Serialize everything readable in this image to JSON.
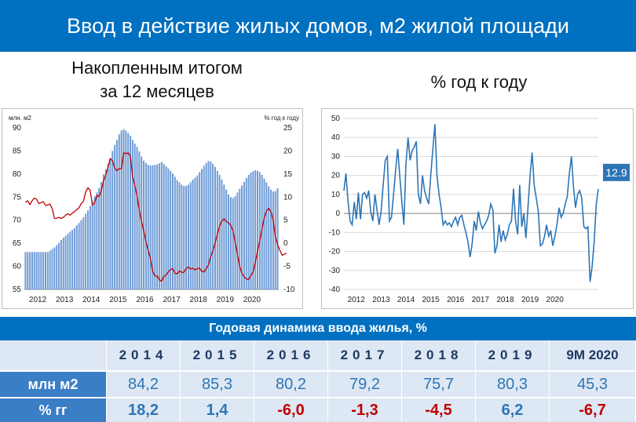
{
  "title": "Ввод в действие жилых домов, м2 жилой площади",
  "left_subtitle_line1": "Накопленным итогом",
  "left_subtitle_line2": "за 12 месяцев",
  "right_subtitle": "% год к году",
  "colors": {
    "header": "#0070c0",
    "bar": "#6f9bd6",
    "line": "#c00000",
    "line_right": "#2e75b6",
    "pos": "#2e75b6",
    "neg": "#c00000"
  },
  "chart_data": [
    {
      "type": "bar",
      "ylabel": "млн. м2",
      "y2label": "% год к году",
      "ylim": [
        55,
        90
      ],
      "y2lim": [
        -10,
        25
      ],
      "yticks": [
        55,
        60,
        65,
        70,
        75,
        80,
        85,
        90
      ],
      "y2ticks": [
        -10,
        -5,
        0,
        5,
        10,
        15,
        20,
        25
      ],
      "x_tick_labels": [
        "2012",
        "2013",
        "2014",
        "2015",
        "2016",
        "2017",
        "2018",
        "2019",
        "2020"
      ],
      "series": [
        {
          "values": [
            63.1,
            63.1,
            63.1,
            63.1,
            63.1,
            63.1,
            63.1,
            63.1,
            63.1,
            63.1,
            63.1,
            63.4,
            63.8,
            64.1,
            64.6,
            65.1,
            65.7,
            66.2,
            66.6,
            67.1,
            67.5,
            67.9,
            68.3,
            68.9,
            69.4,
            70.0,
            70.6,
            71.4,
            72.1,
            73.1,
            74.2,
            75.2,
            76.0,
            77.0,
            78.3,
            79.9,
            81.0,
            82.2,
            83.5,
            85.0,
            86.3,
            87.4,
            88.6,
            89.4,
            89.7,
            89.4,
            88.9,
            88.3,
            87.4,
            86.6,
            85.9,
            84.9,
            83.8,
            82.9,
            82.4,
            82.0,
            81.8,
            81.9,
            82.0,
            82.1,
            82.3,
            82.6,
            82.2,
            81.7,
            81.2,
            80.7,
            80.1,
            79.4,
            78.7,
            78.2,
            77.7,
            77.4,
            77.4,
            77.7,
            78.2,
            78.8,
            79.2,
            79.7,
            80.4,
            81.1,
            81.8,
            82.4,
            82.8,
            82.7,
            82.2,
            81.5,
            80.7,
            79.8,
            78.8,
            77.7,
            76.6,
            75.6,
            75.0,
            74.8,
            75.2,
            76.0,
            76.8,
            77.5,
            78.3,
            79.1,
            79.8,
            80.3,
            80.6,
            80.8,
            80.7,
            80.4,
            79.8,
            79.0,
            78.2,
            77.3,
            76.6,
            76.2,
            76.3,
            76.9
          ]
        },
        {
          "values": [
            8.9,
            9.2,
            8.4,
            9.2,
            9.8,
            9.5,
            8.6,
            8.8,
            9.0,
            8.2,
            8.3,
            8.5,
            7.5,
            5.4,
            5.4,
            5.6,
            5.4,
            5.6,
            6.1,
            6.4,
            6.1,
            6.5,
            6.9,
            7.3,
            7.7,
            8.6,
            9.1,
            11.2,
            12.0,
            11.5,
            8.3,
            8.7,
            10.4,
            10.1,
            11.5,
            13.5,
            14.8,
            16.5,
            18.3,
            17.9,
            16.3,
            15.7,
            16.2,
            16.1,
            19.6,
            19.4,
            19.6,
            18.9,
            14.5,
            12.5,
            10.3,
            7.2,
            4.8,
            2.7,
            0.3,
            -1.5,
            -3.3,
            -6.0,
            -7.1,
            -7.1,
            -7.9,
            -8.2,
            -7.2,
            -6.9,
            -6.2,
            -5.7,
            -5.5,
            -6.5,
            -6.6,
            -6.0,
            -6.3,
            -6.3,
            -5.5,
            -5.1,
            -5.6,
            -5.4,
            -5.8,
            -5.5,
            -5.4,
            -6.1,
            -6.2,
            -5.5,
            -4.7,
            -2.9,
            -1.6,
            0.1,
            2.0,
            3.7,
            4.8,
            5.3,
            4.7,
            4.4,
            3.9,
            2.7,
            0.1,
            -2.3,
            -5.0,
            -6.5,
            -7.3,
            -7.7,
            -7.9,
            -7.0,
            -6.2,
            -4.1,
            -1.7,
            0.5,
            3.1,
            5.5,
            7.0,
            7.6,
            6.8,
            5.0,
            1.4,
            -0.3,
            -1.5,
            -2.6,
            -2.4,
            -2.1
          ]
        }
      ]
    },
    {
      "type": "line",
      "ylim": [
        -40,
        50
      ],
      "yticks": [
        -40,
        -30,
        -20,
        -10,
        0,
        10,
        20,
        30,
        40,
        50
      ],
      "x_tick_labels": [
        "2012",
        "2013",
        "2014",
        "2015",
        "2016",
        "2017",
        "2018",
        "2019",
        "2020"
      ],
      "annotation": "12.9",
      "series": [
        {
          "values": [
            12,
            21,
            6,
            -4,
            -6,
            6,
            -3,
            11,
            -3,
            10,
            11,
            8,
            12,
            1,
            -4,
            10,
            2,
            -6,
            1,
            15,
            28,
            30,
            -4,
            -2,
            10,
            23,
            34,
            20,
            6,
            -6,
            26,
            40,
            28,
            33,
            35,
            38,
            10,
            5,
            20,
            12,
            8,
            5,
            20,
            34,
            47,
            20,
            10,
            3,
            -6,
            -4,
            -6,
            -5,
            -7,
            -4,
            -2,
            -6,
            -2,
            -1,
            -6,
            -10,
            -15,
            -23,
            -16,
            -4,
            -9,
            1,
            -5,
            -8,
            -6,
            -4,
            -1,
            5,
            2,
            -21,
            -17,
            -6,
            -15,
            -9,
            -14,
            -11,
            -6,
            -4,
            13,
            -4,
            -11,
            15,
            -7,
            0,
            -13,
            3,
            20,
            32,
            15,
            8,
            1,
            -17,
            -16,
            -12,
            -6,
            -12,
            -9,
            -17,
            -12,
            -6,
            3,
            -2,
            0,
            5,
            9,
            21,
            30,
            14,
            3,
            10,
            12,
            8,
            -7,
            -8,
            -7,
            -36,
            -28,
            -15,
            5,
            12.9
          ]
        }
      ]
    }
  ],
  "table": {
    "title": "Годовая динамика ввода жилья, %",
    "years": [
      "2014",
      "2015",
      "2016",
      "2017",
      "2018",
      "2019",
      "9М 2020"
    ],
    "row1_label": "млн м2",
    "row1": [
      "84,2",
      "85,3",
      "80,2",
      "79,2",
      "75,7",
      "80,3",
      "45,3"
    ],
    "row2_label": "% гг",
    "row2": [
      "18,2",
      "1,4",
      "-6,0",
      "-1,3",
      "-4,5",
      "6,2",
      "-6,7"
    ]
  }
}
